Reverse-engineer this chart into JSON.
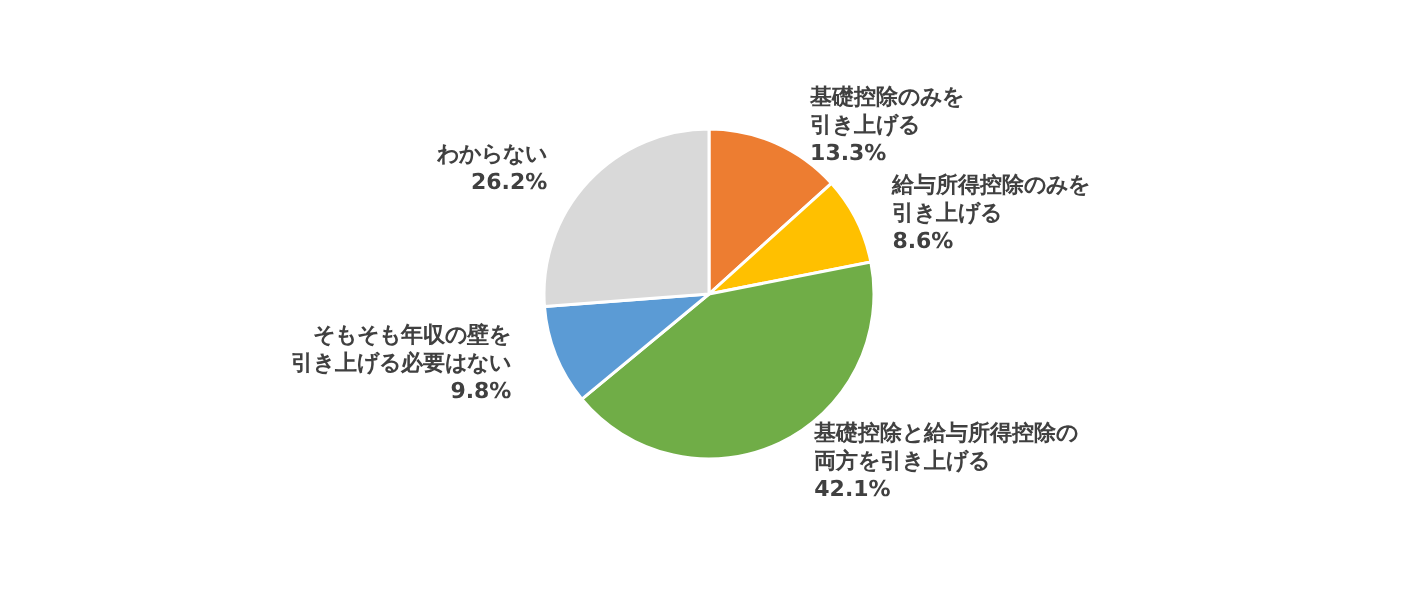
{
  "chart_data": {
    "type": "pie",
    "categories": [
      "基礎控除のみを引き上げる",
      "給与所得控除のみを引き上げる",
      "基礎控除と給与所得控除の両方を引き上げる",
      "そもそも年収の壁を引き上げる必要はない",
      "わからない"
    ],
    "values": [
      13.3,
      8.6,
      42.1,
      9.8,
      26.2
    ],
    "value_labels": [
      "13.3%",
      "8.6%",
      "42.1%",
      "9.8%",
      "26.2%"
    ],
    "colors": [
      "#ed7d31",
      "#ffc000",
      "#70ad47",
      "#5b9bd5",
      "#d9d9d9"
    ],
    "legend": false
  }
}
